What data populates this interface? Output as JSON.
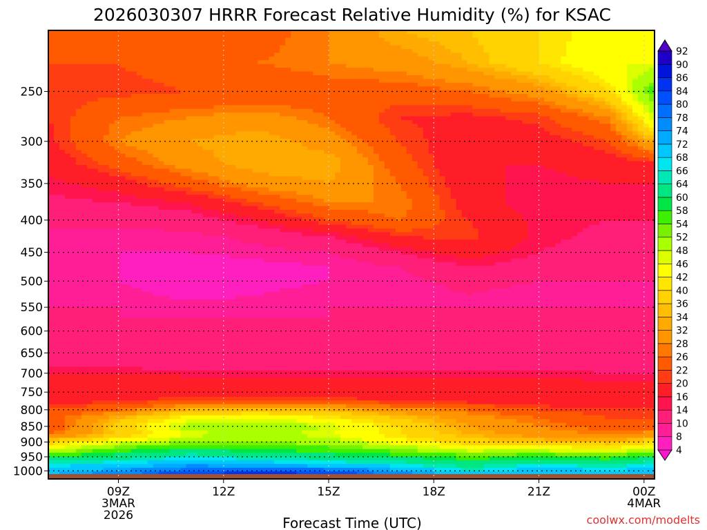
{
  "chart_data": {
    "type": "heatmap",
    "title": "2026030307 HRRR Forecast Relative Humidity (%) for KSAC",
    "xlabel": "Forecast Time (UTC)",
    "ylabel": "",
    "credit": "coolwx.com/modelts",
    "y_axis": {
      "scale": "log",
      "inverted": true,
      "ylim": [
        1030,
        200
      ],
      "ticks": [
        250,
        300,
        350,
        400,
        450,
        500,
        550,
        600,
        650,
        700,
        750,
        800,
        850,
        900,
        950,
        1000
      ]
    },
    "x_axis": {
      "xlim": [
        7,
        24.3
      ],
      "ticks": [
        {
          "x": 9,
          "lines": [
            "09Z",
            "3MAR",
            "2026"
          ]
        },
        {
          "x": 12,
          "lines": [
            "12Z"
          ]
        },
        {
          "x": 15,
          "lines": [
            "15Z"
          ]
        },
        {
          "x": 18,
          "lines": [
            "18Z"
          ]
        },
        {
          "x": 21,
          "lines": [
            "21Z"
          ]
        },
        {
          "x": 24,
          "lines": [
            "00Z",
            "4MAR"
          ]
        }
      ]
    },
    "grid": true,
    "ground_below_hpa": 1012,
    "colorbar": {
      "position": "right",
      "levels": [
        4,
        8,
        10,
        14,
        16,
        20,
        22,
        26,
        28,
        32,
        34,
        36,
        40,
        42,
        46,
        48,
        52,
        54,
        58,
        60,
        64,
        66,
        68,
        72,
        74,
        78,
        80,
        84,
        86,
        90,
        92
      ],
      "colors": [
        "#ff14d2",
        "#ff1ebe",
        "#ff1e96",
        "#ff1e78",
        "#ff1450",
        "#ff1e28",
        "#ff3c14",
        "#ff5a00",
        "#ff7800",
        "#ff9600",
        "#ffaa00",
        "#ffbe00",
        "#ffd200",
        "#ffe600",
        "#ffff00",
        "#dcff00",
        "#aaff00",
        "#78f000",
        "#3cf000",
        "#00e646",
        "#00e682",
        "#00e6b4",
        "#00e6f0",
        "#00c8ff",
        "#00aaff",
        "#008cff",
        "#006eff",
        "#0050ff",
        "#0032f0",
        "#0014dc",
        "#1e00c8",
        "#5000c8"
      ]
    },
    "rh_profiles": [
      {
        "x": 7,
        "pressure": [
          200,
          225,
          250,
          275,
          300,
          325,
          350,
          375,
          400,
          425,
          450,
          475,
          500,
          525,
          550,
          575,
          600,
          625,
          650,
          675,
          700,
          725,
          750,
          775,
          800,
          825,
          850,
          875,
          900,
          925,
          950,
          975,
          1000,
          1012
        ],
        "rh": [
          22,
          22,
          21,
          20,
          19,
          17,
          15,
          13,
          11,
          9,
          8,
          8,
          9,
          9,
          10,
          10,
          12,
          10,
          11,
          12,
          16,
          18,
          16,
          18,
          22,
          24,
          22,
          26,
          38,
          46,
          60,
          66,
          70,
          72
        ]
      },
      {
        "x": 9,
        "pressure": [
          200,
          225,
          250,
          275,
          300,
          325,
          350,
          375,
          400,
          425,
          450,
          475,
          500,
          525,
          550,
          575,
          600,
          625,
          650,
          675,
          700,
          725,
          750,
          775,
          800,
          825,
          850,
          875,
          900,
          925,
          950,
          975,
          1000,
          1012
        ],
        "rh": [
          22,
          22,
          21,
          26,
          28,
          24,
          18,
          14,
          11,
          9,
          8,
          8,
          8,
          9,
          10,
          10,
          11,
          11,
          11,
          12,
          16,
          18,
          17,
          20,
          26,
          34,
          38,
          36,
          46,
          56,
          62,
          68,
          74,
          76
        ]
      },
      {
        "x": 11,
        "pressure": [
          200,
          225,
          250,
          275,
          300,
          325,
          350,
          375,
          400,
          425,
          450,
          475,
          500,
          525,
          550,
          575,
          600,
          625,
          650,
          675,
          700,
          725,
          750,
          775,
          800,
          825,
          850,
          875,
          900,
          925,
          950,
          975,
          1000,
          1012
        ],
        "rh": [
          22,
          24,
          22,
          28,
          32,
          30,
          24,
          16,
          12,
          9,
          8,
          6,
          6,
          7,
          9,
          10,
          10,
          10,
          11,
          12,
          15,
          18,
          17,
          22,
          34,
          44,
          50,
          46,
          52,
          60,
          66,
          72,
          80,
          84
        ]
      },
      {
        "x": 13,
        "pressure": [
          200,
          225,
          250,
          275,
          300,
          325,
          350,
          375,
          400,
          425,
          450,
          475,
          500,
          525,
          550,
          575,
          600,
          625,
          650,
          675,
          700,
          725,
          750,
          775,
          800,
          825,
          850,
          875,
          900,
          925,
          950,
          975,
          1000,
          1012
        ],
        "rh": [
          24,
          26,
          22,
          30,
          34,
          34,
          30,
          22,
          16,
          11,
          9,
          7,
          7,
          8,
          9,
          10,
          10,
          10,
          11,
          12,
          15,
          18,
          17,
          22,
          36,
          46,
          52,
          50,
          52,
          58,
          64,
          70,
          82,
          86
        ]
      },
      {
        "x": 15,
        "pressure": [
          200,
          225,
          250,
          275,
          300,
          325,
          350,
          375,
          400,
          425,
          450,
          475,
          500,
          525,
          550,
          575,
          600,
          625,
          650,
          675,
          700,
          725,
          750,
          775,
          800,
          825,
          850,
          875,
          900,
          925,
          950,
          975,
          1000,
          1012
        ],
        "rh": [
          28,
          28,
          24,
          26,
          30,
          34,
          32,
          28,
          22,
          14,
          10,
          8,
          8,
          9,
          10,
          10,
          10,
          10,
          11,
          12,
          15,
          18,
          17,
          22,
          34,
          42,
          48,
          46,
          50,
          56,
          62,
          68,
          80,
          84
        ]
      },
      {
        "x": 17,
        "pressure": [
          200,
          225,
          250,
          275,
          300,
          325,
          350,
          375,
          400,
          425,
          450,
          475,
          500,
          525,
          550,
          575,
          600,
          625,
          650,
          675,
          700,
          725,
          750,
          775,
          800,
          825,
          850,
          875,
          900,
          925,
          950,
          975,
          1000,
          1012
        ],
        "rh": [
          34,
          30,
          24,
          20,
          22,
          24,
          26,
          28,
          26,
          20,
          14,
          10,
          9,
          9,
          10,
          10,
          10,
          10,
          11,
          12,
          15,
          18,
          17,
          20,
          30,
          36,
          40,
          40,
          44,
          52,
          60,
          66,
          72,
          76
        ]
      },
      {
        "x": 19,
        "pressure": [
          200,
          225,
          250,
          275,
          300,
          325,
          350,
          375,
          400,
          425,
          450,
          475,
          500,
          525,
          550,
          575,
          600,
          625,
          650,
          675,
          700,
          725,
          750,
          775,
          800,
          825,
          850,
          875,
          900,
          925,
          950,
          975,
          1000,
          1012
        ],
        "rh": [
          36,
          34,
          26,
          19,
          17,
          16,
          17,
          18,
          20,
          21,
          18,
          14,
          11,
          10,
          10,
          10,
          10,
          10,
          11,
          12,
          15,
          18,
          17,
          19,
          26,
          30,
          32,
          34,
          38,
          46,
          56,
          62,
          66,
          70
        ]
      },
      {
        "x": 21,
        "pressure": [
          200,
          225,
          250,
          275,
          300,
          325,
          350,
          375,
          400,
          425,
          450,
          475,
          500,
          525,
          550,
          575,
          600,
          625,
          650,
          675,
          700,
          725,
          750,
          775,
          800,
          825,
          850,
          875,
          900,
          925,
          950,
          975,
          1000,
          1012
        ],
        "rh": [
          40,
          40,
          30,
          21,
          18,
          16,
          15,
          14,
          15,
          15,
          14,
          12,
          10,
          9,
          10,
          10,
          10,
          10,
          11,
          12,
          15,
          18,
          17,
          18,
          22,
          26,
          28,
          30,
          36,
          46,
          58,
          66,
          70,
          72
        ]
      },
      {
        "x": 23,
        "pressure": [
          200,
          225,
          250,
          275,
          300,
          325,
          350,
          375,
          400,
          425,
          450,
          475,
          500,
          525,
          550,
          575,
          600,
          625,
          650,
          675,
          700,
          725,
          750,
          775,
          800,
          825,
          850,
          875,
          900,
          925,
          950,
          975,
          1000,
          1012
        ],
        "rh": [
          44,
          46,
          40,
          28,
          22,
          18,
          16,
          15,
          14,
          13,
          12,
          11,
          10,
          9,
          10,
          10,
          10,
          10,
          11,
          12,
          14,
          16,
          16,
          17,
          20,
          22,
          24,
          28,
          34,
          44,
          56,
          64,
          68,
          70
        ]
      },
      {
        "x": 24.3,
        "pressure": [
          200,
          225,
          250,
          275,
          300,
          325,
          350,
          375,
          400,
          425,
          450,
          475,
          500,
          525,
          550,
          575,
          600,
          625,
          650,
          675,
          700,
          725,
          750,
          775,
          800,
          825,
          850,
          875,
          900,
          925,
          950,
          975,
          1000,
          1012
        ],
        "rh": [
          44,
          46,
          56,
          48,
          34,
          20,
          16,
          15,
          14,
          13,
          12,
          11,
          10,
          9,
          10,
          10,
          10,
          10,
          11,
          12,
          14,
          16,
          16,
          17,
          20,
          22,
          24,
          30,
          40,
          48,
          60,
          66,
          70,
          72
        ]
      }
    ]
  }
}
